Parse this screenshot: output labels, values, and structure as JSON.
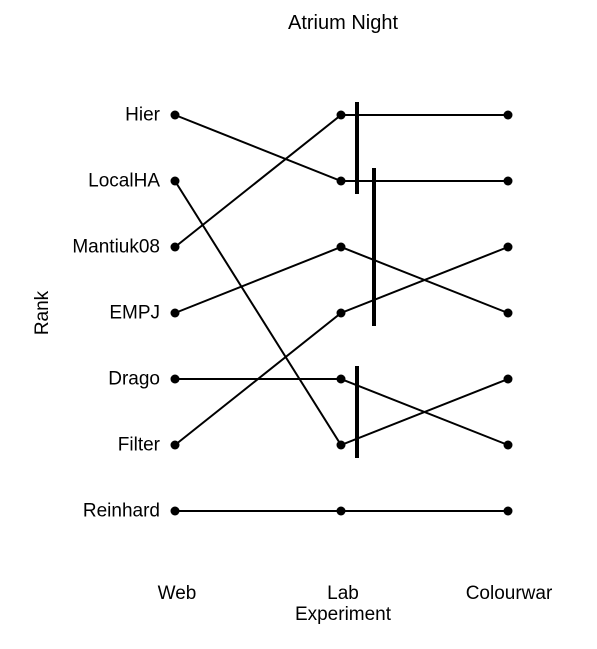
{
  "chart_data": {
    "type": "line",
    "title": "Atrium Night",
    "xlabel": "Experiment",
    "ylabel": "Rank",
    "categories": [
      "Web",
      "Lab",
      "Colourwar"
    ],
    "rank_labels": [
      "Hier",
      "LocalHA",
      "Mantiuk08",
      "EMPJ",
      "Drago",
      "Filter",
      "Reinhard"
    ],
    "ylim": [
      1,
      7
    ],
    "grid": false,
    "series": [
      {
        "name": "Hier",
        "values": [
          1,
          2,
          2
        ]
      },
      {
        "name": "LocalHA",
        "values": [
          2,
          6,
          5
        ]
      },
      {
        "name": "Mantiuk08",
        "values": [
          3,
          1,
          1
        ]
      },
      {
        "name": "EMPJ",
        "values": [
          4,
          3,
          4
        ]
      },
      {
        "name": "Drago",
        "values": [
          5,
          5,
          6
        ]
      },
      {
        "name": "Filter",
        "values": [
          6,
          4,
          3
        ]
      },
      {
        "name": "Reinhard",
        "values": [
          7,
          7,
          7
        ]
      }
    ],
    "significance_bars": [
      {
        "experiment": "Lab",
        "ranks": [
          1,
          2
        ]
      },
      {
        "experiment": "Lab",
        "ranks": [
          2,
          4
        ]
      },
      {
        "experiment": "Lab",
        "ranks": [
          5,
          6
        ]
      }
    ]
  }
}
